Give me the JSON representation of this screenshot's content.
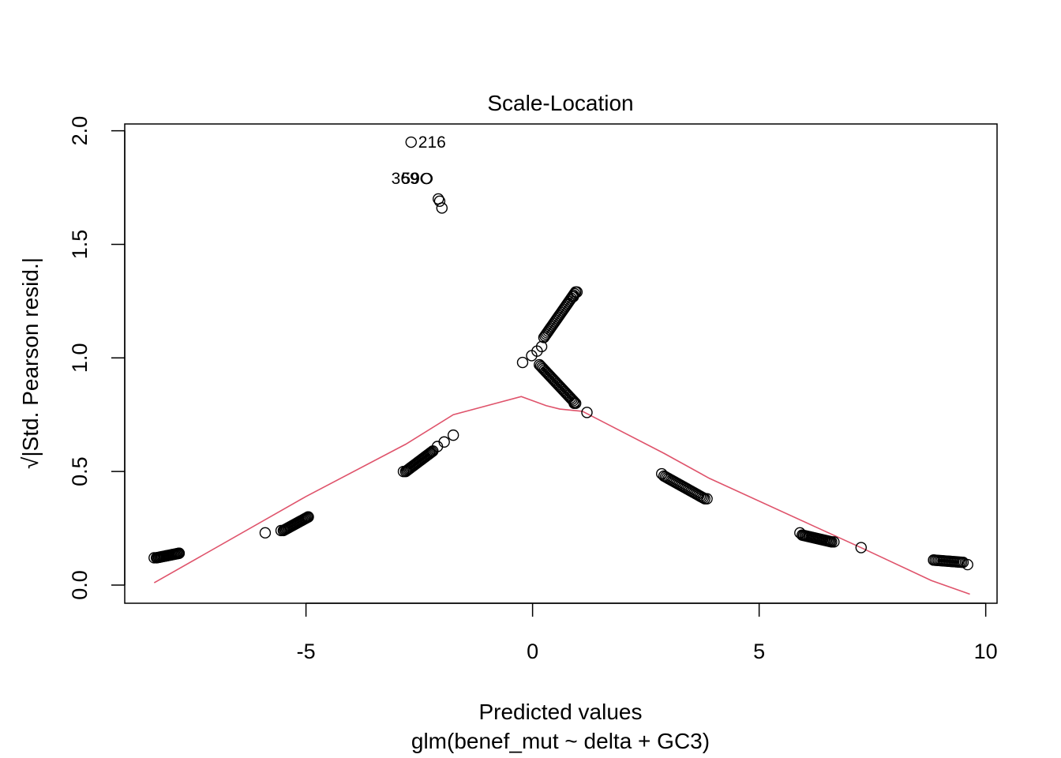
{
  "chart_data": {
    "type": "scatter",
    "title": "Scale-Location",
    "xlabel": "Predicted values",
    "subtitle": "glm(benef_mut ~ delta + GC3)",
    "ylabel": "√|Std. Pearson resid.|",
    "xlim": [
      -9.0,
      10.25
    ],
    "ylim": [
      -0.08,
      2.03
    ],
    "x_ticks": [
      -5,
      0,
      5,
      10
    ],
    "x_tick_labels": [
      "-5",
      "0",
      "5",
      "10"
    ],
    "y_ticks": [
      0.0,
      0.5,
      1.0,
      1.5,
      2.0
    ],
    "y_tick_labels": [
      "0.0",
      "0.5",
      "1.0",
      "1.5",
      "2.0"
    ],
    "grid": false,
    "point_color": "#000000",
    "smooth_color": "#DF536B",
    "point_clusters": [
      {
        "x_from": -8.3,
        "x_to": -7.8,
        "y_from": 0.12,
        "y_to": 0.14,
        "n": 22
      },
      {
        "x_from": -5.5,
        "x_to": -4.95,
        "y_from": 0.24,
        "y_to": 0.3,
        "n": 24
      },
      {
        "x_from": -2.8,
        "x_to": -2.2,
        "y_from": 0.5,
        "y_to": 0.59,
        "n": 26
      },
      {
        "x_from": 0.15,
        "x_to": 0.95,
        "y_from": 0.97,
        "y_to": 0.8,
        "n": 30
      },
      {
        "x_from": 0.25,
        "x_to": 0.95,
        "y_from": 1.09,
        "y_to": 1.29,
        "n": 30
      },
      {
        "x_from": 2.9,
        "x_to": 3.8,
        "y_from": 0.48,
        "y_to": 0.38,
        "n": 28
      },
      {
        "x_from": 5.95,
        "x_to": 6.6,
        "y_from": 0.22,
        "y_to": 0.19,
        "n": 24
      },
      {
        "x_from": 8.85,
        "x_to": 9.5,
        "y_from": 0.11,
        "y_to": 0.1,
        "n": 20
      }
    ],
    "points": [
      {
        "x": -8.35,
        "y": 0.12
      },
      {
        "x": -7.8,
        "y": 0.14
      },
      {
        "x": -5.9,
        "y": 0.23
      },
      {
        "x": -5.55,
        "y": 0.24
      },
      {
        "x": -4.95,
        "y": 0.3
      },
      {
        "x": -2.85,
        "y": 0.5
      },
      {
        "x": -2.1,
        "y": 0.61
      },
      {
        "x": -1.95,
        "y": 0.63
      },
      {
        "x": -1.75,
        "y": 0.66
      },
      {
        "x": -2.68,
        "y": 1.95
      },
      {
        "x": -2.35,
        "y": 1.79
      },
      {
        "x": -2.33,
        "y": 1.79
      },
      {
        "x": -2.08,
        "y": 1.7
      },
      {
        "x": -2.05,
        "y": 1.69
      },
      {
        "x": -2.0,
        "y": 1.66
      },
      {
        "x": -0.22,
        "y": 0.98
      },
      {
        "x": -0.02,
        "y": 1.01
      },
      {
        "x": 0.1,
        "y": 1.03
      },
      {
        "x": 0.2,
        "y": 1.05
      },
      {
        "x": 0.98,
        "y": 1.29
      },
      {
        "x": 0.9,
        "y": 1.27
      },
      {
        "x": 0.92,
        "y": 0.8
      },
      {
        "x": 1.2,
        "y": 0.76
      },
      {
        "x": 2.85,
        "y": 0.49
      },
      {
        "x": 3.85,
        "y": 0.38
      },
      {
        "x": 5.9,
        "y": 0.23
      },
      {
        "x": 6.65,
        "y": 0.19
      },
      {
        "x": 7.25,
        "y": 0.165
      },
      {
        "x": 8.85,
        "y": 0.11
      },
      {
        "x": 9.6,
        "y": 0.09
      }
    ],
    "point_labels": [
      {
        "text": "216",
        "x": -2.68,
        "y": 1.95,
        "side": "right"
      },
      {
        "text": "369",
        "x": -2.35,
        "y": 1.79,
        "side": "left"
      },
      {
        "text": "59",
        "x": -2.33,
        "y": 1.79,
        "side": "left"
      }
    ],
    "smooth_line": {
      "x": [
        -8.35,
        -5.0,
        -2.8,
        -1.75,
        -0.25,
        0.3,
        0.6,
        1.1,
        2.9,
        3.9,
        6.2,
        7.3,
        8.8,
        9.65
      ],
      "y": [
        0.01,
        0.39,
        0.62,
        0.75,
        0.83,
        0.79,
        0.775,
        0.765,
        0.58,
        0.47,
        0.26,
        0.16,
        0.02,
        -0.04
      ]
    }
  }
}
